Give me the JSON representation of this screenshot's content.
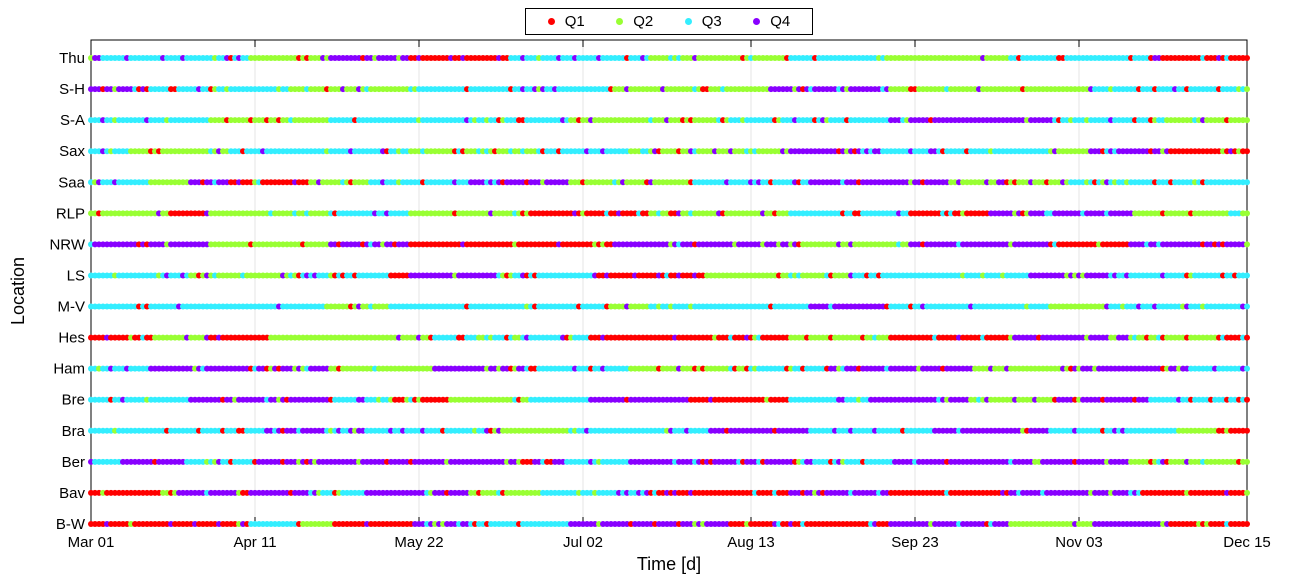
{
  "chart_data": {
    "type": "scatter",
    "title": "",
    "xlabel": "Time [d]",
    "ylabel": "Location",
    "x_tick_labels": [
      "Mar 01",
      "Apr 11",
      "May 22",
      "Jul 02",
      "Aug 13",
      "Sep 23",
      "Nov 03",
      "Dec 15"
    ],
    "x_tick_days": [
      0,
      41,
      82,
      123,
      165,
      206,
      247,
      289
    ],
    "xlim": [
      0,
      289
    ],
    "categories": [
      "B-W",
      "Bav",
      "Ber",
      "Bra",
      "Bre",
      "Ham",
      "Hes",
      "M-V",
      "LS",
      "NRW",
      "RLP",
      "Saa",
      "Sax",
      "S-A",
      "S-H",
      "Thu"
    ],
    "grid": true,
    "legend_position": "top-center",
    "series": [
      {
        "name": "Q1",
        "color": "#ff0000"
      },
      {
        "name": "Q2",
        "color": "#99ff33"
      },
      {
        "name": "Q3",
        "color": "#33eeff"
      },
      {
        "name": "Q4",
        "color": "#8800ff"
      }
    ],
    "rows": [
      {
        "location": "B-W",
        "runs": [
          [
            0,
            40,
            0
          ],
          [
            40,
            52,
            2
          ],
          [
            52,
            61,
            1
          ],
          [
            61,
            80,
            0
          ],
          [
            80,
            95,
            3
          ],
          [
            95,
            120,
            2
          ],
          [
            120,
            160,
            3
          ],
          [
            160,
            200,
            0
          ],
          [
            200,
            230,
            3
          ],
          [
            230,
            250,
            1
          ],
          [
            250,
            270,
            3
          ],
          [
            270,
            290,
            0
          ]
        ]
      },
      {
        "location": "Bav",
        "runs": [
          [
            0,
            20,
            0
          ],
          [
            20,
            55,
            3
          ],
          [
            55,
            70,
            2
          ],
          [
            70,
            95,
            3
          ],
          [
            95,
            115,
            1
          ],
          [
            115,
            140,
            2
          ],
          [
            140,
            175,
            0
          ],
          [
            175,
            200,
            3
          ],
          [
            200,
            230,
            0
          ],
          [
            230,
            262,
            3
          ],
          [
            262,
            290,
            0
          ]
        ]
      },
      {
        "location": "Ber",
        "runs": [
          [
            0,
            8,
            2
          ],
          [
            8,
            25,
            3
          ],
          [
            25,
            42,
            2
          ],
          [
            42,
            120,
            3
          ],
          [
            120,
            135,
            2
          ],
          [
            135,
            180,
            3
          ],
          [
            180,
            200,
            2
          ],
          [
            200,
            260,
            3
          ],
          [
            260,
            290,
            1
          ]
        ]
      },
      {
        "location": "Bra",
        "runs": [
          [
            0,
            45,
            2
          ],
          [
            45,
            60,
            3
          ],
          [
            60,
            100,
            2
          ],
          [
            100,
            120,
            1
          ],
          [
            120,
            155,
            2
          ],
          [
            155,
            180,
            3
          ],
          [
            180,
            210,
            2
          ],
          [
            210,
            240,
            3
          ],
          [
            240,
            272,
            2
          ],
          [
            272,
            282,
            1
          ],
          [
            282,
            290,
            0
          ]
        ]
      },
      {
        "location": "Bre",
        "runs": [
          [
            0,
            25,
            2
          ],
          [
            25,
            60,
            3
          ],
          [
            60,
            75,
            2
          ],
          [
            75,
            90,
            0
          ],
          [
            90,
            110,
            1
          ],
          [
            110,
            125,
            2
          ],
          [
            125,
            150,
            3
          ],
          [
            150,
            175,
            0
          ],
          [
            175,
            195,
            2
          ],
          [
            195,
            220,
            3
          ],
          [
            220,
            240,
            1
          ],
          [
            240,
            265,
            3
          ],
          [
            265,
            290,
            2
          ]
        ]
      },
      {
        "location": "Ham",
        "runs": [
          [
            0,
            15,
            2
          ],
          [
            15,
            60,
            3
          ],
          [
            60,
            85,
            1
          ],
          [
            85,
            110,
            3
          ],
          [
            110,
            135,
            2
          ],
          [
            135,
            165,
            1
          ],
          [
            165,
            185,
            2
          ],
          [
            185,
            220,
            3
          ],
          [
            220,
            245,
            1
          ],
          [
            245,
            275,
            3
          ],
          [
            275,
            290,
            2
          ]
        ]
      },
      {
        "location": "Hes",
        "runs": [
          [
            0,
            15,
            0
          ],
          [
            15,
            30,
            1
          ],
          [
            30,
            45,
            0
          ],
          [
            45,
            85,
            1
          ],
          [
            85,
            125,
            2
          ],
          [
            125,
            175,
            0
          ],
          [
            175,
            200,
            1
          ],
          [
            200,
            230,
            0
          ],
          [
            230,
            260,
            3
          ],
          [
            260,
            282,
            1
          ],
          [
            282,
            290,
            0
          ]
        ]
      },
      {
        "location": "M-V",
        "runs": [
          [
            0,
            60,
            2
          ],
          [
            60,
            75,
            1
          ],
          [
            75,
            130,
            2
          ],
          [
            130,
            140,
            1
          ],
          [
            140,
            180,
            2
          ],
          [
            180,
            200,
            3
          ],
          [
            200,
            240,
            2
          ],
          [
            240,
            255,
            1
          ],
          [
            255,
            290,
            2
          ]
        ]
      },
      {
        "location": "LS",
        "runs": [
          [
            0,
            25,
            2
          ],
          [
            25,
            50,
            1
          ],
          [
            50,
            75,
            2
          ],
          [
            75,
            80,
            0
          ],
          [
            80,
            102,
            3
          ],
          [
            102,
            127,
            2
          ],
          [
            127,
            155,
            0
          ],
          [
            155,
            190,
            1
          ],
          [
            190,
            235,
            2
          ],
          [
            235,
            255,
            3
          ],
          [
            255,
            290,
            2
          ]
        ]
      },
      {
        "location": "NRW",
        "runs": [
          [
            0,
            30,
            3
          ],
          [
            30,
            60,
            1
          ],
          [
            60,
            80,
            3
          ],
          [
            80,
            130,
            0
          ],
          [
            130,
            175,
            3
          ],
          [
            175,
            205,
            1
          ],
          [
            205,
            240,
            3
          ],
          [
            240,
            260,
            0
          ],
          [
            260,
            290,
            3
          ]
        ]
      },
      {
        "location": "RLP",
        "runs": [
          [
            0,
            20,
            1
          ],
          [
            20,
            30,
            0
          ],
          [
            30,
            60,
            1
          ],
          [
            60,
            80,
            2
          ],
          [
            80,
            110,
            1
          ],
          [
            110,
            140,
            0
          ],
          [
            140,
            175,
            1
          ],
          [
            175,
            205,
            2
          ],
          [
            205,
            225,
            0
          ],
          [
            225,
            260,
            3
          ],
          [
            260,
            290,
            1
          ]
        ]
      },
      {
        "location": "Saa",
        "runs": [
          [
            0,
            15,
            2
          ],
          [
            15,
            25,
            1
          ],
          [
            25,
            35,
            3
          ],
          [
            35,
            55,
            0
          ],
          [
            55,
            70,
            1
          ],
          [
            70,
            95,
            2
          ],
          [
            95,
            120,
            3
          ],
          [
            120,
            150,
            1
          ],
          [
            150,
            180,
            2
          ],
          [
            180,
            215,
            3
          ],
          [
            215,
            245,
            1
          ],
          [
            245,
            290,
            2
          ]
        ]
      },
      {
        "location": "Sax",
        "runs": [
          [
            0,
            10,
            2
          ],
          [
            10,
            35,
            1
          ],
          [
            35,
            80,
            2
          ],
          [
            80,
            110,
            1
          ],
          [
            110,
            135,
            2
          ],
          [
            135,
            175,
            1
          ],
          [
            175,
            200,
            3
          ],
          [
            200,
            240,
            2
          ],
          [
            240,
            250,
            1
          ],
          [
            250,
            270,
            3
          ],
          [
            270,
            290,
            0
          ]
        ]
      },
      {
        "location": "S-A",
        "runs": [
          [
            0,
            30,
            2
          ],
          [
            30,
            60,
            1
          ],
          [
            60,
            120,
            2
          ],
          [
            120,
            160,
            1
          ],
          [
            160,
            200,
            2
          ],
          [
            200,
            240,
            3
          ],
          [
            240,
            270,
            2
          ],
          [
            270,
            290,
            1
          ]
        ]
      },
      {
        "location": "S-H",
        "runs": [
          [
            0,
            15,
            3
          ],
          [
            15,
            50,
            2
          ],
          [
            50,
            80,
            1
          ],
          [
            80,
            130,
            2
          ],
          [
            130,
            170,
            1
          ],
          [
            170,
            200,
            3
          ],
          [
            200,
            250,
            1
          ],
          [
            250,
            290,
            2
          ]
        ]
      },
      {
        "location": "Thu",
        "runs": [
          [
            0,
            40,
            2
          ],
          [
            40,
            60,
            1
          ],
          [
            60,
            80,
            3
          ],
          [
            80,
            105,
            0
          ],
          [
            105,
            140,
            2
          ],
          [
            140,
            175,
            1
          ],
          [
            175,
            200,
            2
          ],
          [
            200,
            230,
            1
          ],
          [
            230,
            265,
            2
          ],
          [
            265,
            290,
            0
          ]
        ]
      }
    ]
  }
}
